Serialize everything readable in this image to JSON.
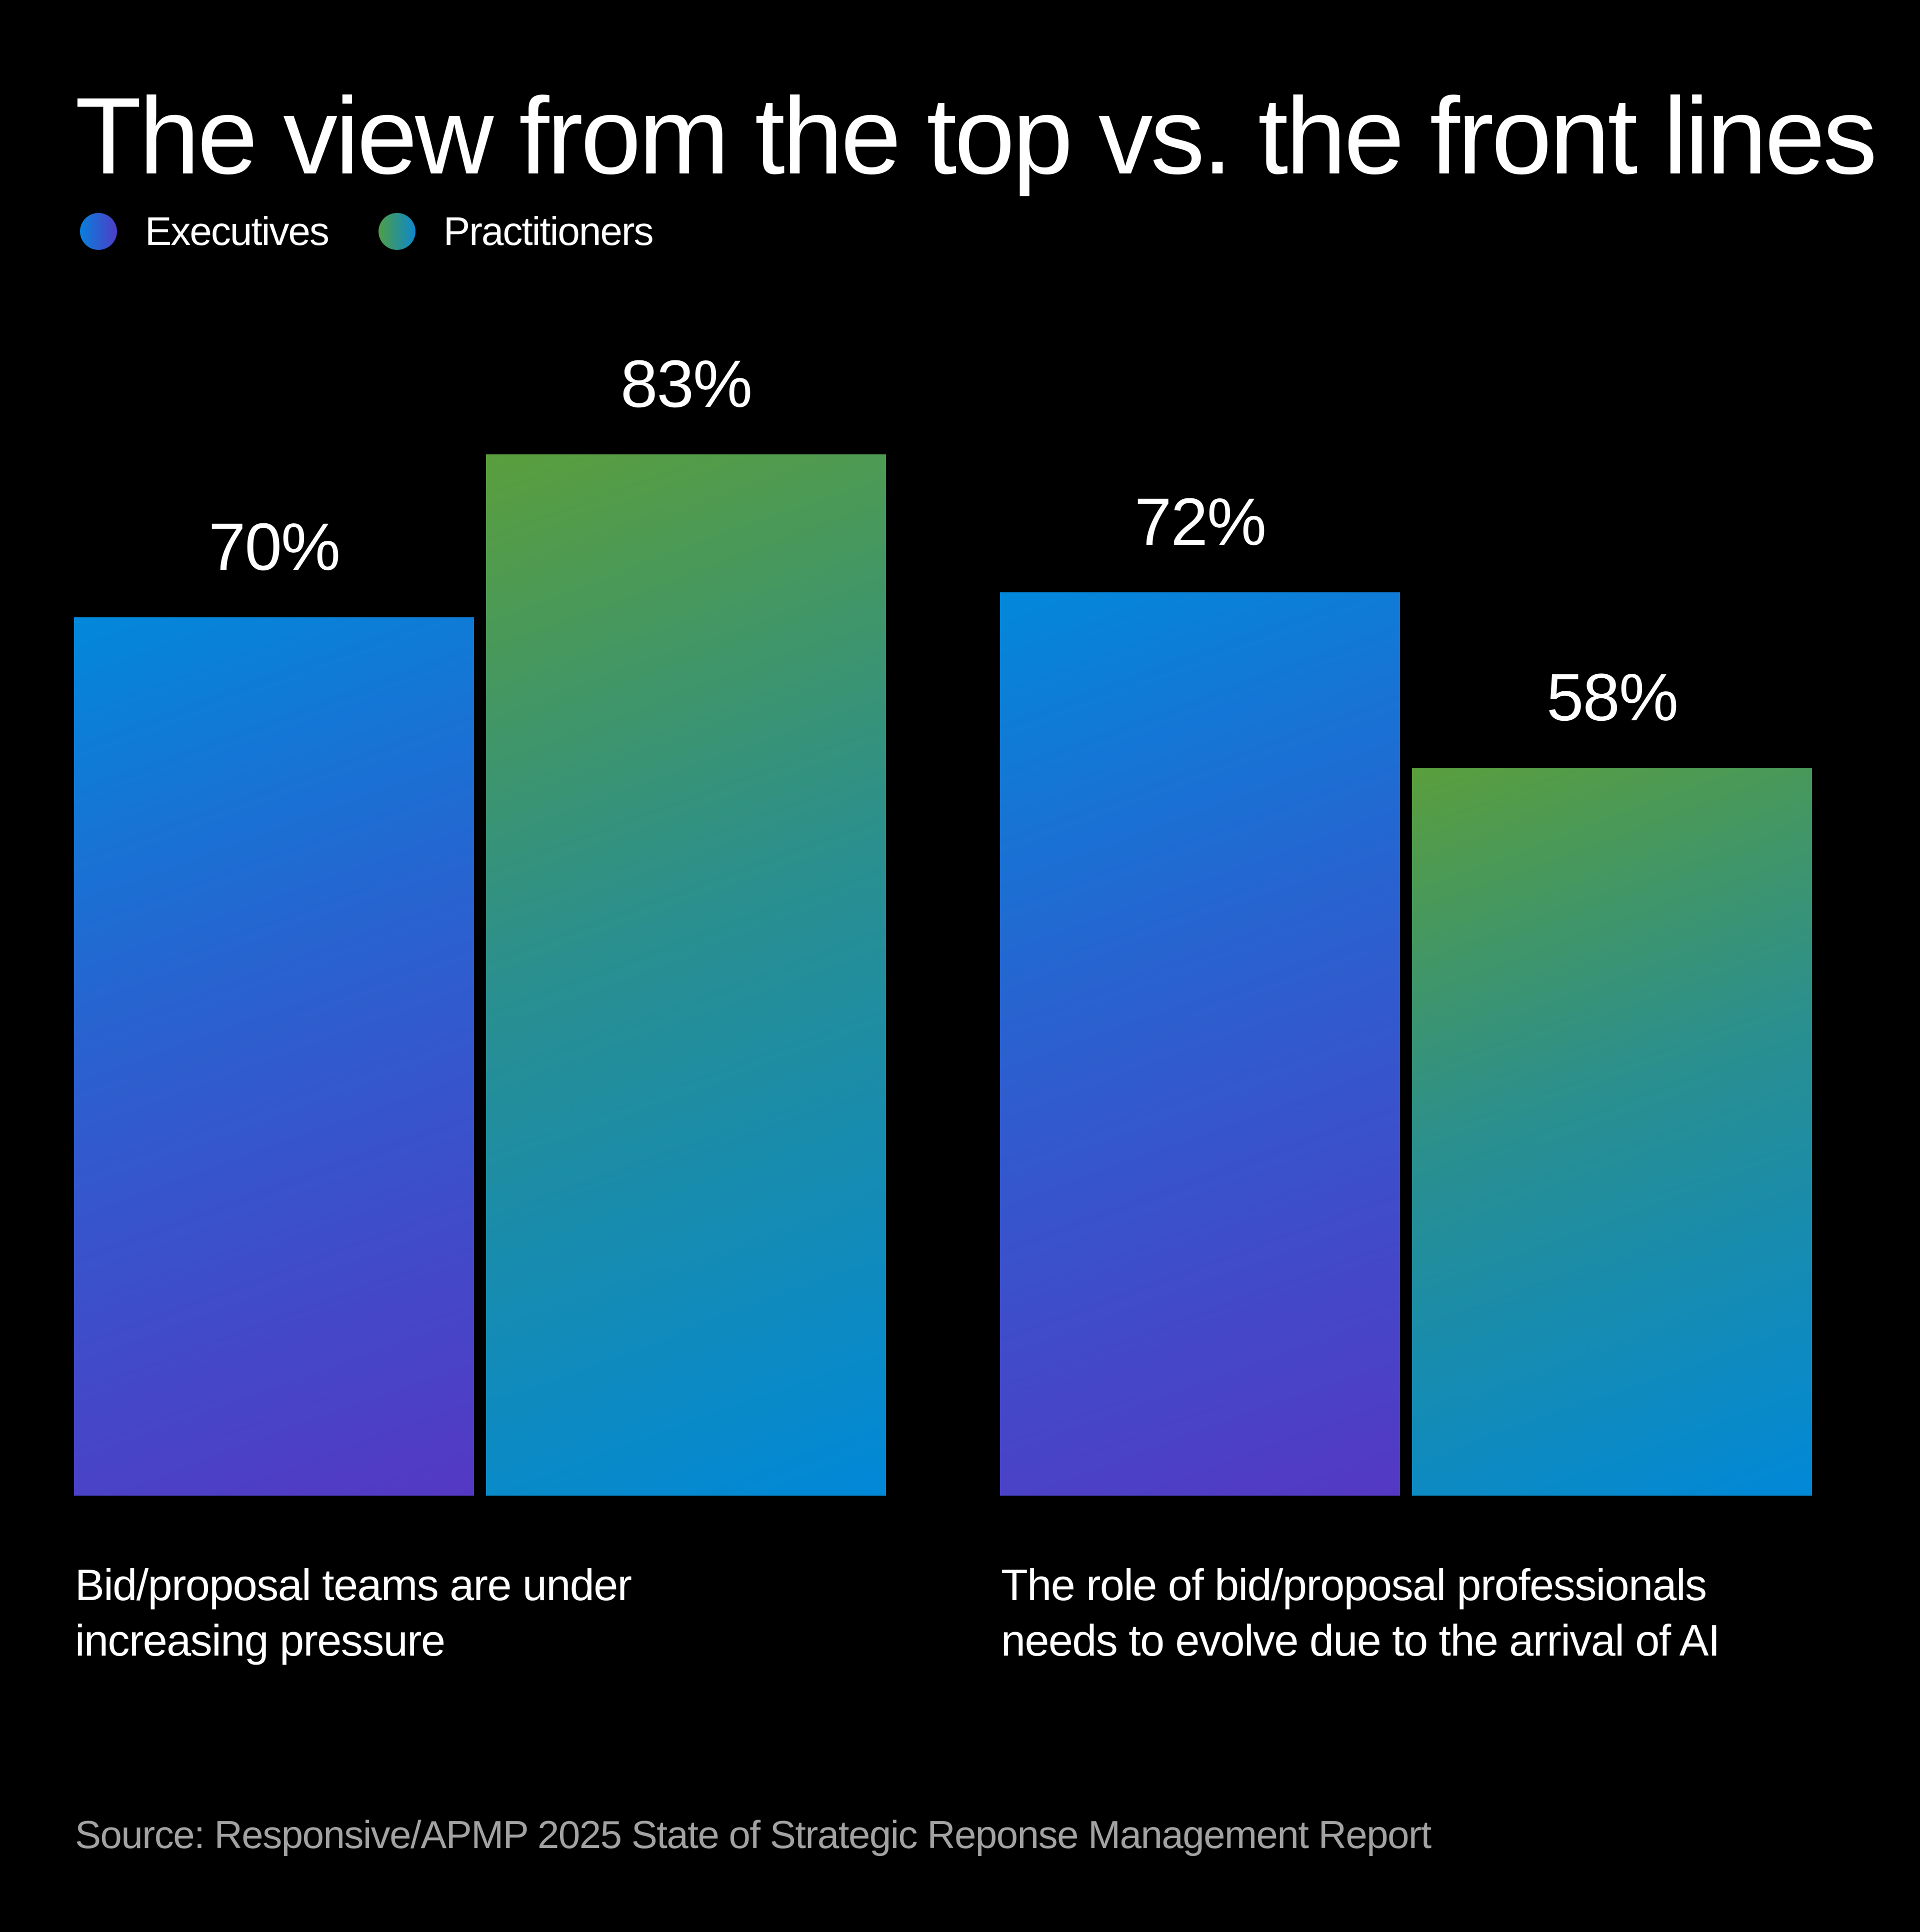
{
  "title": "The view from the top vs. the front lines",
  "legend": [
    {
      "label": "Executives",
      "color_start": "#0288da",
      "color_end": "#5438c4"
    },
    {
      "label": "Practitioners",
      "color_start": "#5a9e3c",
      "color_end": "#0088d8"
    }
  ],
  "groups": [
    {
      "caption": "Bid/proposal teams are under increasing pressure",
      "executives": {
        "value": 70,
        "label": "70%"
      },
      "practitioners": {
        "value": 83,
        "label": "83%"
      }
    },
    {
      "caption": "The role of bid/proposal professionals needs to evolve due to the arrival of AI",
      "executives": {
        "value": 72,
        "label": "72%"
      },
      "practitioners": {
        "value": 58,
        "label": "58%"
      }
    }
  ],
  "source": "Source: Responsive/APMP 2025 State of Strategic Reponse Management Report",
  "chart_data": {
    "type": "bar",
    "title": "The view from the top vs. the front lines",
    "categories": [
      "Bid/proposal teams are under increasing pressure",
      "The role of bid/proposal professionals needs to evolve due to the arrival of AI"
    ],
    "series": [
      {
        "name": "Executives",
        "values": [
          70,
          72
        ],
        "color": "#2c5fcf"
      },
      {
        "name": "Practitioners",
        "values": [
          83,
          58
        ],
        "color": "#2a8f8e"
      }
    ],
    "value_labels": [
      [
        "70%",
        "72%"
      ],
      [
        "83%",
        "58%"
      ]
    ],
    "xlabel": "",
    "ylabel": "",
    "ylim": [
      0,
      100
    ],
    "unit": "%",
    "grid": false,
    "axes_visible": false,
    "legend_position": "top-left",
    "source": "Source: Responsive/APMP 2025 State of Strategic Reponse Management Report"
  }
}
